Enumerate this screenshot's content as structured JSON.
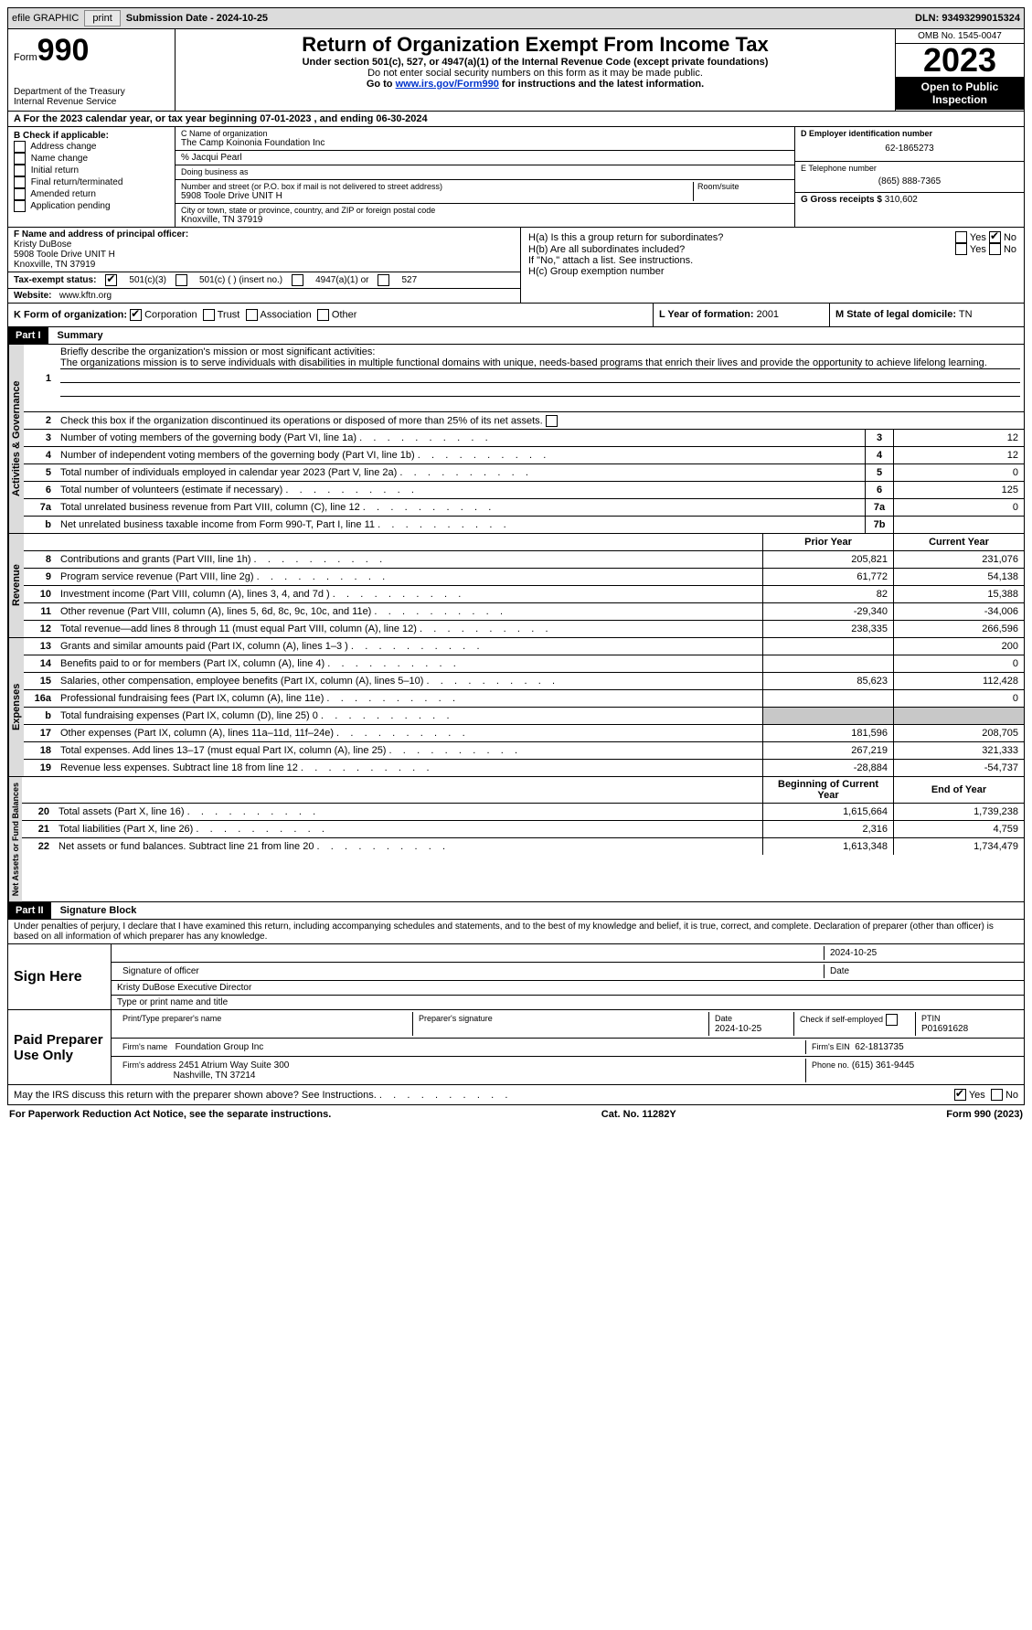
{
  "topbar": {
    "efile_label": "efile GRAPHIC",
    "print_btn": "print",
    "submission_label": "Submission Date - 2024-10-25",
    "dln_label": "DLN: 93493299015324"
  },
  "header": {
    "form_prefix": "Form",
    "form_number": "990",
    "dept": "Department of the Treasury",
    "irs": "Internal Revenue Service",
    "title": "Return of Organization Exempt From Income Tax",
    "sub1": "Under section 501(c), 527, or 4947(a)(1) of the Internal Revenue Code (except private foundations)",
    "sub2": "Do not enter social security numbers on this form as it may be made public.",
    "sub3_prefix": "Go to ",
    "sub3_link": "www.irs.gov/Form990",
    "sub3_suffix": " for instructions and the latest information.",
    "omb": "OMB No. 1545-0047",
    "year": "2023",
    "open_public": "Open to Public Inspection"
  },
  "row_a": "A For the 2023 calendar year, or tax year beginning 07-01-2023    , and ending 06-30-2024",
  "box_b": {
    "title": "B Check if applicable:",
    "opts": [
      "Address change",
      "Name change",
      "Initial return",
      "Final return/terminated",
      "Amended return",
      "Application pending"
    ]
  },
  "box_c": {
    "name_label": "C Name of organization",
    "name": "The Camp Koinonia Foundation Inc",
    "care_of": "% Jacqui Pearl",
    "dba_label": "Doing business as",
    "addr_label": "Number and street (or P.O. box if mail is not delivered to street address)",
    "room_label": "Room/suite",
    "addr": "5908 Toole Drive UNIT H",
    "city_label": "City or town, state or province, country, and ZIP or foreign postal code",
    "city": "Knoxville, TN  37919"
  },
  "box_d": {
    "ein_label": "D Employer identification number",
    "ein": "62-1865273",
    "phone_label": "E Telephone number",
    "phone": "(865) 888-7365",
    "gross_label": "G Gross receipts $",
    "gross": "310,602"
  },
  "box_f": {
    "label": "F  Name and address of principal officer:",
    "name": "Kristy DuBose",
    "addr": "5908 Toole Drive UNIT H",
    "city": "Knoxville, TN  37919"
  },
  "box_i": {
    "label": "Tax-exempt status:",
    "opt1": "501(c)(3)",
    "opt2": "501(c) (  ) (insert no.)",
    "opt3": "4947(a)(1) or",
    "opt4": "527"
  },
  "box_j": {
    "label": "Website:",
    "value": "www.kftn.org"
  },
  "box_h": {
    "ha": "H(a)  Is this a group return for subordinates?",
    "hb": "H(b)  Are all subordinates included?",
    "hb_note": "If \"No,\" attach a list. See instructions.",
    "hc": "H(c)  Group exemption number",
    "yes": "Yes",
    "no": "No"
  },
  "box_k": {
    "label": "K Form of organization:",
    "opts": [
      "Corporation",
      "Trust",
      "Association",
      "Other"
    ]
  },
  "box_l": {
    "label": "L Year of formation:",
    "value": "2001"
  },
  "box_m": {
    "label": "M State of legal domicile:",
    "value": "TN"
  },
  "part1": {
    "header": "Part I",
    "title": "Summary",
    "tab_ag": "Activities & Governance",
    "tab_rev": "Revenue",
    "tab_exp": "Expenses",
    "tab_net": "Net Assets or Fund Balances",
    "line1_label": "Briefly describe the organization's mission or most significant activities:",
    "line1_text": "The organizations mission is to serve individuals with disabilities in multiple functional domains with unique, needs-based programs that enrich their lives and provide the opportunity to achieve lifelong learning.",
    "line2": "Check this box      if the organization discontinued its operations or disposed of more than 25% of its net assets.",
    "lines_ag": [
      {
        "n": "3",
        "d": "Number of voting members of the governing body (Part VI, line 1a)",
        "box": "3",
        "v": "12"
      },
      {
        "n": "4",
        "d": "Number of independent voting members of the governing body (Part VI, line 1b)",
        "box": "4",
        "v": "12"
      },
      {
        "n": "5",
        "d": "Total number of individuals employed in calendar year 2023 (Part V, line 2a)",
        "box": "5",
        "v": "0"
      },
      {
        "n": "6",
        "d": "Total number of volunteers (estimate if necessary)",
        "box": "6",
        "v": "125"
      },
      {
        "n": "7a",
        "d": "Total unrelated business revenue from Part VIII, column (C), line 12",
        "box": "7a",
        "v": "0"
      },
      {
        "n": "b",
        "d": "Net unrelated business taxable income from Form 990-T, Part I, line 11",
        "box": "7b",
        "v": ""
      }
    ],
    "col_heads": {
      "prior": "Prior Year",
      "current": "Current Year"
    },
    "lines_rev": [
      {
        "n": "8",
        "d": "Contributions and grants (Part VIII, line 1h)",
        "p": "205,821",
        "c": "231,076"
      },
      {
        "n": "9",
        "d": "Program service revenue (Part VIII, line 2g)",
        "p": "61,772",
        "c": "54,138"
      },
      {
        "n": "10",
        "d": "Investment income (Part VIII, column (A), lines 3, 4, and 7d )",
        "p": "82",
        "c": "15,388"
      },
      {
        "n": "11",
        "d": "Other revenue (Part VIII, column (A), lines 5, 6d, 8c, 9c, 10c, and 11e)",
        "p": "-29,340",
        "c": "-34,006"
      },
      {
        "n": "12",
        "d": "Total revenue—add lines 8 through 11 (must equal Part VIII, column (A), line 12)",
        "p": "238,335",
        "c": "266,596"
      }
    ],
    "lines_exp": [
      {
        "n": "13",
        "d": "Grants and similar amounts paid (Part IX, column (A), lines 1–3 )",
        "p": "",
        "c": "200"
      },
      {
        "n": "14",
        "d": "Benefits paid to or for members (Part IX, column (A), line 4)",
        "p": "",
        "c": "0"
      },
      {
        "n": "15",
        "d": "Salaries, other compensation, employee benefits (Part IX, column (A), lines 5–10)",
        "p": "85,623",
        "c": "112,428"
      },
      {
        "n": "16a",
        "d": "Professional fundraising fees (Part IX, column (A), line 11e)",
        "p": "",
        "c": "0"
      },
      {
        "n": "b",
        "d": "Total fundraising expenses (Part IX, column (D), line 25) 0",
        "p": "shaded",
        "c": "shaded"
      },
      {
        "n": "17",
        "d": "Other expenses (Part IX, column (A), lines 11a–11d, 11f–24e)",
        "p": "181,596",
        "c": "208,705"
      },
      {
        "n": "18",
        "d": "Total expenses. Add lines 13–17 (must equal Part IX, column (A), line 25)",
        "p": "267,219",
        "c": "321,333"
      },
      {
        "n": "19",
        "d": "Revenue less expenses. Subtract line 18 from line 12",
        "p": "-28,884",
        "c": "-54,737"
      }
    ],
    "col_heads2": {
      "begin": "Beginning of Current Year",
      "end": "End of Year"
    },
    "lines_net": [
      {
        "n": "20",
        "d": "Total assets (Part X, line 16)",
        "p": "1,615,664",
        "c": "1,739,238"
      },
      {
        "n": "21",
        "d": "Total liabilities (Part X, line 26)",
        "p": "2,316",
        "c": "4,759"
      },
      {
        "n": "22",
        "d": "Net assets or fund balances. Subtract line 21 from line 20",
        "p": "1,613,348",
        "c": "1,734,479"
      }
    ]
  },
  "part2": {
    "header": "Part II",
    "title": "Signature Block",
    "declaration": "Under penalties of perjury, I declare that I have examined this return, including accompanying schedules and statements, and to the best of my knowledge and belief, it is true, correct, and complete. Declaration of preparer (other than officer) is based on all information of which preparer has any knowledge.",
    "sign_here": "Sign Here",
    "sig_date": "2024-10-25",
    "sig_label": "Signature of officer",
    "date_label": "Date",
    "officer": "Kristy DuBose  Executive Director",
    "type_label": "Type or print name and title",
    "paid": "Paid Preparer Use Only",
    "prep_name_label": "Print/Type preparer's name",
    "prep_sig_label": "Preparer's signature",
    "prep_date_label": "Date",
    "prep_date": "2024-10-25",
    "check_label": "Check      if self-employed",
    "ptin_label": "PTIN",
    "ptin": "P01691628",
    "firm_name_label": "Firm's name",
    "firm_name": "Foundation Group Inc",
    "firm_ein_label": "Firm's EIN",
    "firm_ein": "62-1813735",
    "firm_addr_label": "Firm's address",
    "firm_addr1": "2451 Atrium Way Suite 300",
    "firm_addr2": "Nashville, TN  37214",
    "firm_phone_label": "Phone no.",
    "firm_phone": "(615) 361-9445",
    "discuss": "May the IRS discuss this return with the preparer shown above? See Instructions.",
    "yes": "Yes",
    "no": "No"
  },
  "footer": {
    "left": "For Paperwork Reduction Act Notice, see the separate instructions.",
    "mid": "Cat. No. 11282Y",
    "right": "Form 990 (2023)"
  }
}
